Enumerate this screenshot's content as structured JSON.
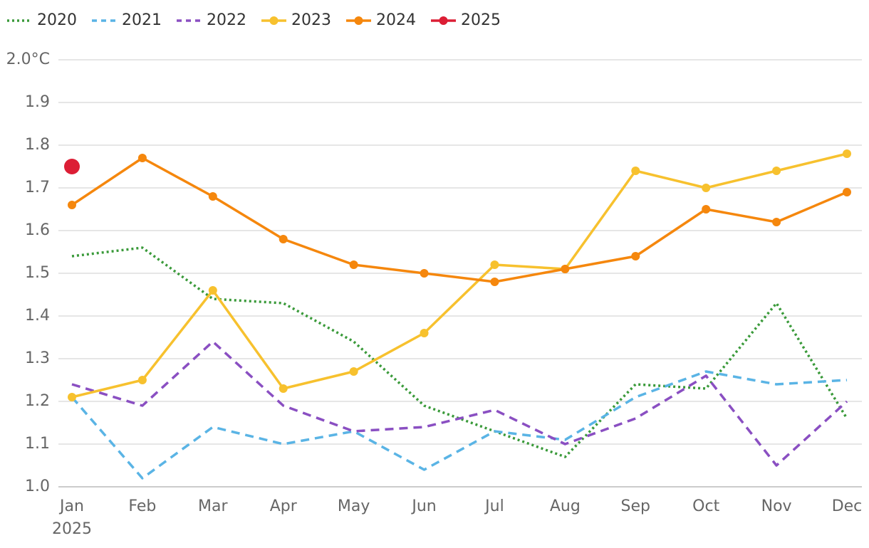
{
  "chart_data": {
    "type": "line",
    "categories": [
      "Jan",
      "Feb",
      "Mar",
      "Apr",
      "May",
      "Jun",
      "Jul",
      "Aug",
      "Sep",
      "Oct",
      "Nov",
      "Dec"
    ],
    "x_sublabel": "2025",
    "ylim": [
      1.0,
      2.0
    ],
    "yticks": [
      {
        "value": 1.0,
        "label": "1.0"
      },
      1.1,
      1.2,
      1.3,
      1.4,
      1.5,
      1.6,
      1.7,
      1.8,
      1.9,
      {
        "value": 2.0,
        "label": "2.0°C"
      }
    ],
    "grid": true,
    "legend": "top",
    "series": [
      {
        "name": "2020",
        "color": "#3a9a3a",
        "dash": "dotted",
        "markers": false,
        "values": [
          1.54,
          1.56,
          1.44,
          1.43,
          1.34,
          1.19,
          1.13,
          1.07,
          1.24,
          1.23,
          1.43,
          1.16
        ]
      },
      {
        "name": "2021",
        "color": "#5ab4e5",
        "dash": "dashed",
        "markers": false,
        "values": [
          1.21,
          1.02,
          1.14,
          1.1,
          1.13,
          1.04,
          1.13,
          1.11,
          1.21,
          1.27,
          1.24,
          1.25
        ]
      },
      {
        "name": "2022",
        "color": "#8a4fc2",
        "dash": "dashed",
        "markers": false,
        "values": [
          1.24,
          1.19,
          1.34,
          1.19,
          1.13,
          1.14,
          1.18,
          1.1,
          1.16,
          1.26,
          1.05,
          1.2
        ]
      },
      {
        "name": "2023",
        "color": "#f7c12e",
        "dash": "solid",
        "markers": true,
        "values": [
          1.21,
          1.25,
          1.46,
          1.23,
          1.27,
          1.36,
          1.52,
          1.51,
          1.74,
          1.7,
          1.74,
          1.78
        ]
      },
      {
        "name": "2024",
        "color": "#f5870d",
        "dash": "solid",
        "markers": true,
        "values": [
          1.66,
          1.77,
          1.68,
          1.58,
          1.52,
          1.5,
          1.48,
          1.51,
          1.54,
          1.65,
          1.62,
          1.69
        ]
      },
      {
        "name": "2025",
        "color": "#dc1e35",
        "dash": "solid",
        "markers": true,
        "values": [
          1.75,
          null,
          null,
          null,
          null,
          null,
          null,
          null,
          null,
          null,
          null,
          null
        ]
      }
    ]
  }
}
